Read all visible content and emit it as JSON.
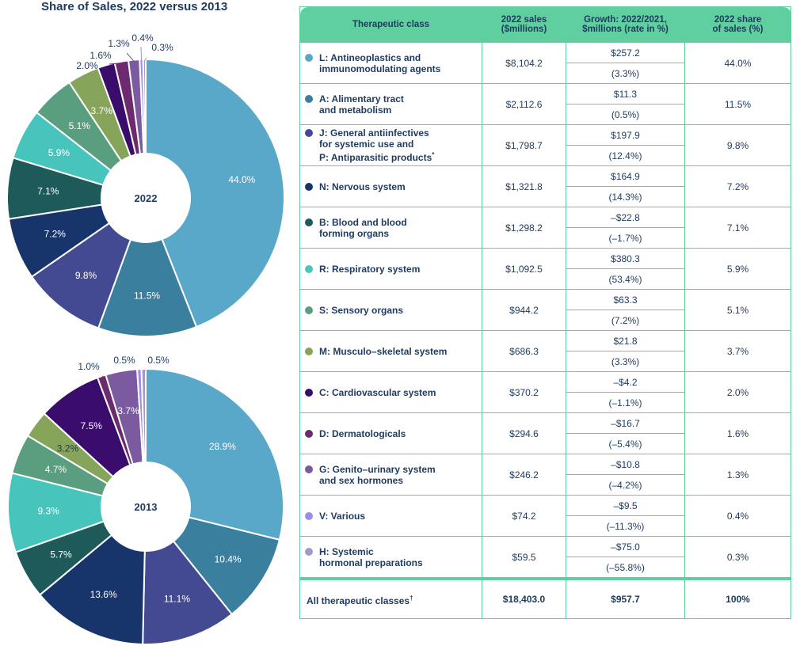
{
  "title": "Share of Sales, 2022 versus 2013",
  "table": {
    "headers": [
      "Therapeutic class",
      "2022 sales\n($millions)",
      "Growth: 2022/2021,\n$millions (rate in %)",
      "2022 share\nof sales (%)"
    ],
    "rows": [
      {
        "label": "L: Antineoplastics and\nimmunomodulating agents",
        "color": "#5aa8c9",
        "sales": "$8,104.2",
        "growth": "$257.2",
        "rate": "(3.3%)",
        "share": "44.0%"
      },
      {
        "label": "A: Alimentary tract\nand metabolism",
        "color": "#3a7f9e",
        "sales": "$2,112.6",
        "growth": "$11.3",
        "rate": "(0.5%)",
        "share": "11.5%"
      },
      {
        "label": "J: General antiinfectives\nfor systemic use and\nP: Antiparasitic products",
        "mark": "*",
        "color": "#434a92",
        "sales": "$1,798.7",
        "growth": "$197.9",
        "rate": "(12.4%)",
        "share": "9.8%"
      },
      {
        "label": "N: Nervous system",
        "color": "#17346b",
        "sales": "$1,321.8",
        "growth": "$164.9",
        "rate": "(14.3%)",
        "share": "7.2%"
      },
      {
        "label": "B: Blood and blood\nforming organs",
        "color": "#1e5a5a",
        "sales": "$1,298.2",
        "growth": "–$22.8",
        "rate": "(–1.7%)",
        "share": "7.1%"
      },
      {
        "label": "R: Respiratory system",
        "color": "#47c4bc",
        "sales": "$1,092.5",
        "growth": "$380.3",
        "rate": "(53.4%)",
        "share": "5.9%"
      },
      {
        "label": "S: Sensory organs",
        "color": "#5a9e80",
        "sales": "$944.2",
        "growth": "$63.3",
        "rate": "(7.2%)",
        "share": "5.1%"
      },
      {
        "label": "M: Musculo–skeletal system",
        "color": "#86a45a",
        "sales": "$686.3",
        "growth": "$21.8",
        "rate": "(3.3%)",
        "share": "3.7%"
      },
      {
        "label": "C: Cardiovascular system",
        "color": "#3a0c6b",
        "sales": "$370.2",
        "growth": "–$4.2",
        "rate": "(–1.1%)",
        "share": "2.0%"
      },
      {
        "label": "D: Dermatologicals",
        "color": "#6e2a6e",
        "sales": "$294.6",
        "growth": "–$16.7",
        "rate": "(–5.4%)",
        "share": "1.6%"
      },
      {
        "label": "G: Genito–urinary system\nand sex hormones",
        "color": "#7b5aa0",
        "sales": "$246.2",
        "growth": "–$10.8",
        "rate": "(–4.2%)",
        "share": "1.3%"
      },
      {
        "label": "V: Various",
        "color": "#9d8cf0",
        "sales": "$74.2",
        "growth": "–$9.5",
        "rate": "(–11.3%)",
        "share": "0.4%"
      },
      {
        "label": "H: Systemic\nhormonal preparations",
        "color": "#a49bc4",
        "sales": "$59.5",
        "growth": "–$75.0",
        "rate": "(–55.8%)",
        "share": "0.3%"
      }
    ],
    "total": {
      "label": "All therapeutic classes",
      "mark": "†",
      "sales": "$18,403.0",
      "growth": "$957.7",
      "share": "100%"
    }
  },
  "chart_data": [
    {
      "type": "pie",
      "center_label": "2022",
      "categories": [
        "L",
        "A",
        "J",
        "N",
        "B",
        "R",
        "S",
        "M",
        "C",
        "D",
        "G",
        "V",
        "H"
      ],
      "values": [
        44.0,
        11.5,
        9.8,
        7.2,
        7.1,
        5.9,
        5.1,
        3.7,
        2.0,
        1.6,
        1.3,
        0.4,
        0.3
      ],
      "labels": [
        "44.0%",
        "11.5%",
        "9.8%",
        "7.2%",
        "7.1%",
        "5.9%",
        "5.1%",
        "3.7%",
        "2.0%",
        "1.6%",
        "1.3%",
        "0.4%",
        "0.3%"
      ],
      "colors": [
        "#5aa8c9",
        "#3a7f9e",
        "#434a92",
        "#17346b",
        "#1e5a5a",
        "#47c4bc",
        "#5a9e80",
        "#86a45a",
        "#3a0c6b",
        "#6e2a6e",
        "#7b5aa0",
        "#9d8cf0",
        "#a49bc4"
      ]
    },
    {
      "type": "pie",
      "center_label": "2013",
      "categories": [
        "L",
        "A",
        "J",
        "N",
        "B",
        "R",
        "S",
        "M",
        "C",
        "D",
        "G",
        "V",
        "H"
      ],
      "values": [
        28.9,
        10.4,
        11.1,
        13.6,
        5.7,
        9.3,
        4.7,
        3.2,
        7.5,
        1.0,
        3.7,
        0.5,
        0.5
      ],
      "labels": [
        "28.9%",
        "10.4%",
        "11.1%",
        "13.6%",
        "5.7%",
        "9.3%",
        "4.7%",
        "3.2%",
        "7.5%",
        "1.0%",
        "3.7%",
        "0.5%",
        "0.5%"
      ],
      "colors": [
        "#5aa8c9",
        "#3a7f9e",
        "#434a92",
        "#17346b",
        "#1e5a5a",
        "#47c4bc",
        "#5a9e80",
        "#86a45a",
        "#3a0c6b",
        "#6e2a6e",
        "#7b5aa0",
        "#9d8cf0",
        "#a49bc4"
      ]
    }
  ]
}
